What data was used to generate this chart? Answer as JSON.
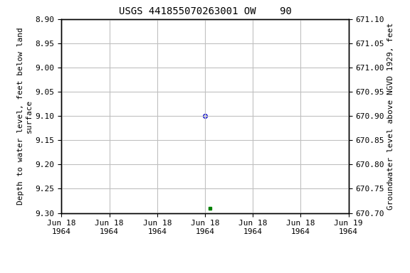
{
  "title": "USGS 441855070263001 OW    90",
  "ylabel_left": "Depth to water level, feet below land\nsurface",
  "ylabel_right": "Groundwater level above NGVD 1929, feet",
  "ylim_left": [
    9.3,
    8.9
  ],
  "ylim_right": [
    670.7,
    671.1
  ],
  "yticks_left": [
    8.9,
    8.95,
    9.0,
    9.05,
    9.1,
    9.15,
    9.2,
    9.25,
    9.3
  ],
  "yticks_right": [
    671.1,
    671.05,
    671.0,
    670.95,
    670.9,
    670.85,
    670.8,
    670.75,
    670.7
  ],
  "xlim": [
    0,
    6
  ],
  "xtick_positions": [
    0,
    1,
    2,
    3,
    4,
    5,
    6
  ],
  "xtick_labels": [
    "Jun 18\n1964",
    "Jun 18\n1964",
    "Jun 18\n1964",
    "Jun 18\n1964",
    "Jun 18\n1964",
    "Jun 18\n1964",
    "Jun 19\n1964"
  ],
  "point_blue_x": 3.0,
  "point_blue_y": 9.1,
  "point_green_x": 3.1,
  "point_green_y": 9.29,
  "blue_color": "#0000cc",
  "green_color": "#008000",
  "background_color": "#ffffff",
  "grid_color": "#c0c0c0",
  "title_fontsize": 10,
  "axis_label_fontsize": 8,
  "tick_fontsize": 8,
  "font_family": "monospace"
}
